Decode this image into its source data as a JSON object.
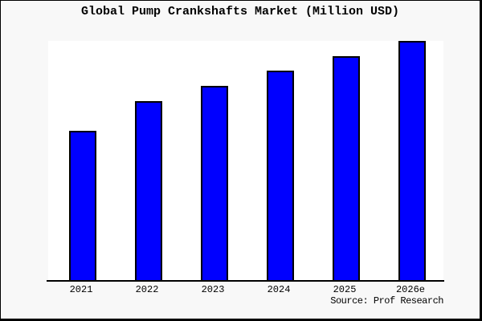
{
  "window": {
    "title": "Global Pump Crankshafts Market (Million USD)"
  },
  "chart_data": {
    "type": "bar",
    "title": "Global Pump Crankshafts Market (Million USD)",
    "categories": [
      "2021",
      "2022",
      "2023",
      "2024",
      "2025",
      "2026e"
    ],
    "values": [
      62.5,
      74.9,
      81.3,
      87.6,
      93.6,
      100
    ],
    "value_unit": "percent of tallest bar (y-axis unlabeled in image)",
    "xlabel": "",
    "ylabel": "",
    "ylim": [
      0,
      100
    ],
    "grid": false,
    "legend_position": "none",
    "bar_color": "#0000ff",
    "bar_border_color": "#000000",
    "source": "Source: Prof Research"
  },
  "colors": {
    "page_background": "#f8f8f8",
    "plot_background": "#ffffff",
    "frame_border": "#000000",
    "axis": "#000000",
    "text": "#000000"
  }
}
